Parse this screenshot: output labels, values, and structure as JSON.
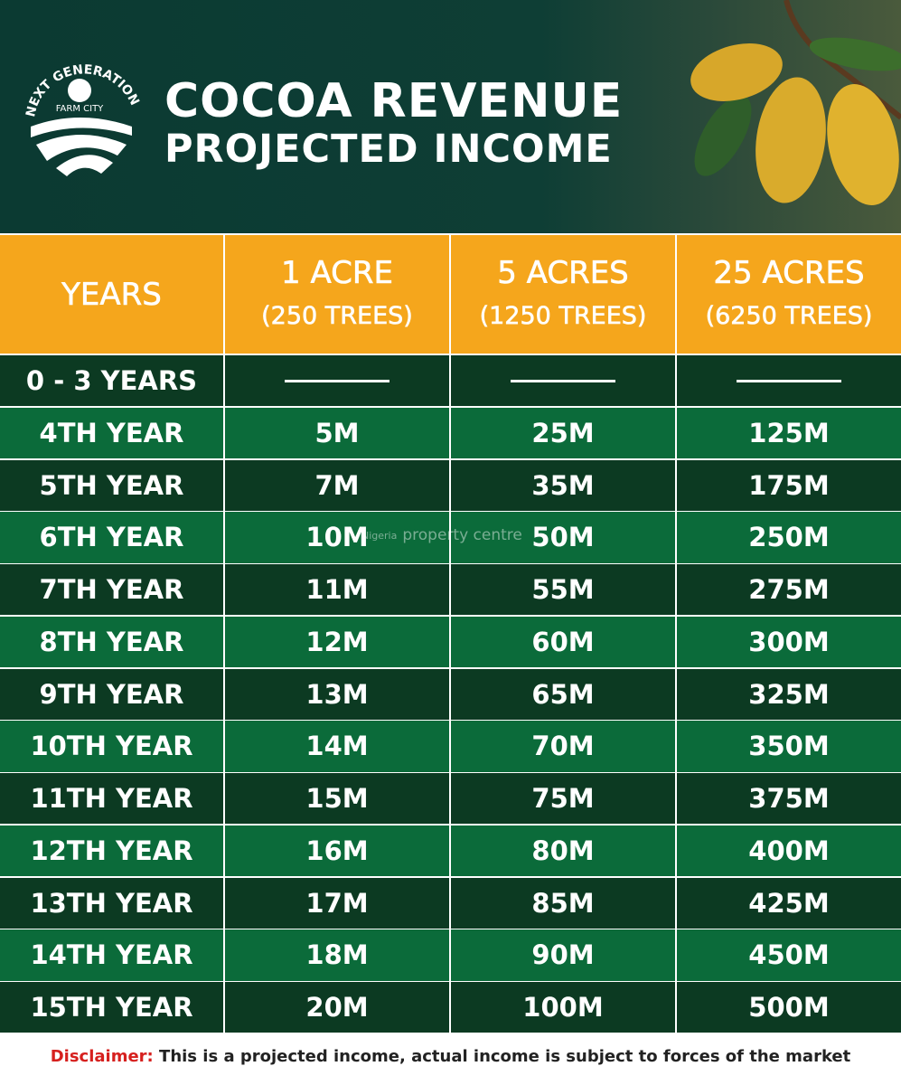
{
  "logo": {
    "name": "NEXT GENERATION",
    "tagline": "FARM CITY"
  },
  "header": {
    "title": "COCOA REVENUE",
    "subtitle": "PROJECTED INCOME"
  },
  "table": {
    "columns": [
      {
        "title": "YEARS"
      },
      {
        "title": "1 ACRE",
        "subtitle": "(250 TREES)"
      },
      {
        "title": "5 ACRES",
        "subtitle": "(1250 TREES)"
      },
      {
        "title": "25 ACRES",
        "subtitle": "(6250 TREES)"
      }
    ],
    "rows": [
      [
        "0 - 3 YEARS"
      ],
      [
        "4TH YEAR",
        "5M",
        "25M",
        "125M"
      ],
      [
        "5TH YEAR",
        "7M",
        "35M",
        "175M"
      ],
      [
        "6TH YEAR",
        "10M",
        "50M",
        "250M"
      ],
      [
        "7TH YEAR",
        "11M",
        "55M",
        "275M"
      ],
      [
        "8TH YEAR",
        "12M",
        "60M",
        "300M"
      ],
      [
        "9TH YEAR",
        "13M",
        "65M",
        "325M"
      ],
      [
        "10TH YEAR",
        "14M",
        "70M",
        "350M"
      ],
      [
        "11TH YEAR",
        "15M",
        "75M",
        "375M"
      ],
      [
        "12TH YEAR",
        "16M",
        "80M",
        "400M"
      ],
      [
        "13TH YEAR",
        "17M",
        "85M",
        "425M"
      ],
      [
        "14TH YEAR",
        "18M",
        "90M",
        "450M"
      ],
      [
        "15TH YEAR",
        "20M",
        "100M",
        "500M"
      ]
    ]
  },
  "watermark": {
    "country": "Nigeria",
    "brand": "property centre"
  },
  "disclaimer": {
    "label": "Disclaimer:",
    "text": "This is a projected income, actual income is subject to forces of the market"
  }
}
